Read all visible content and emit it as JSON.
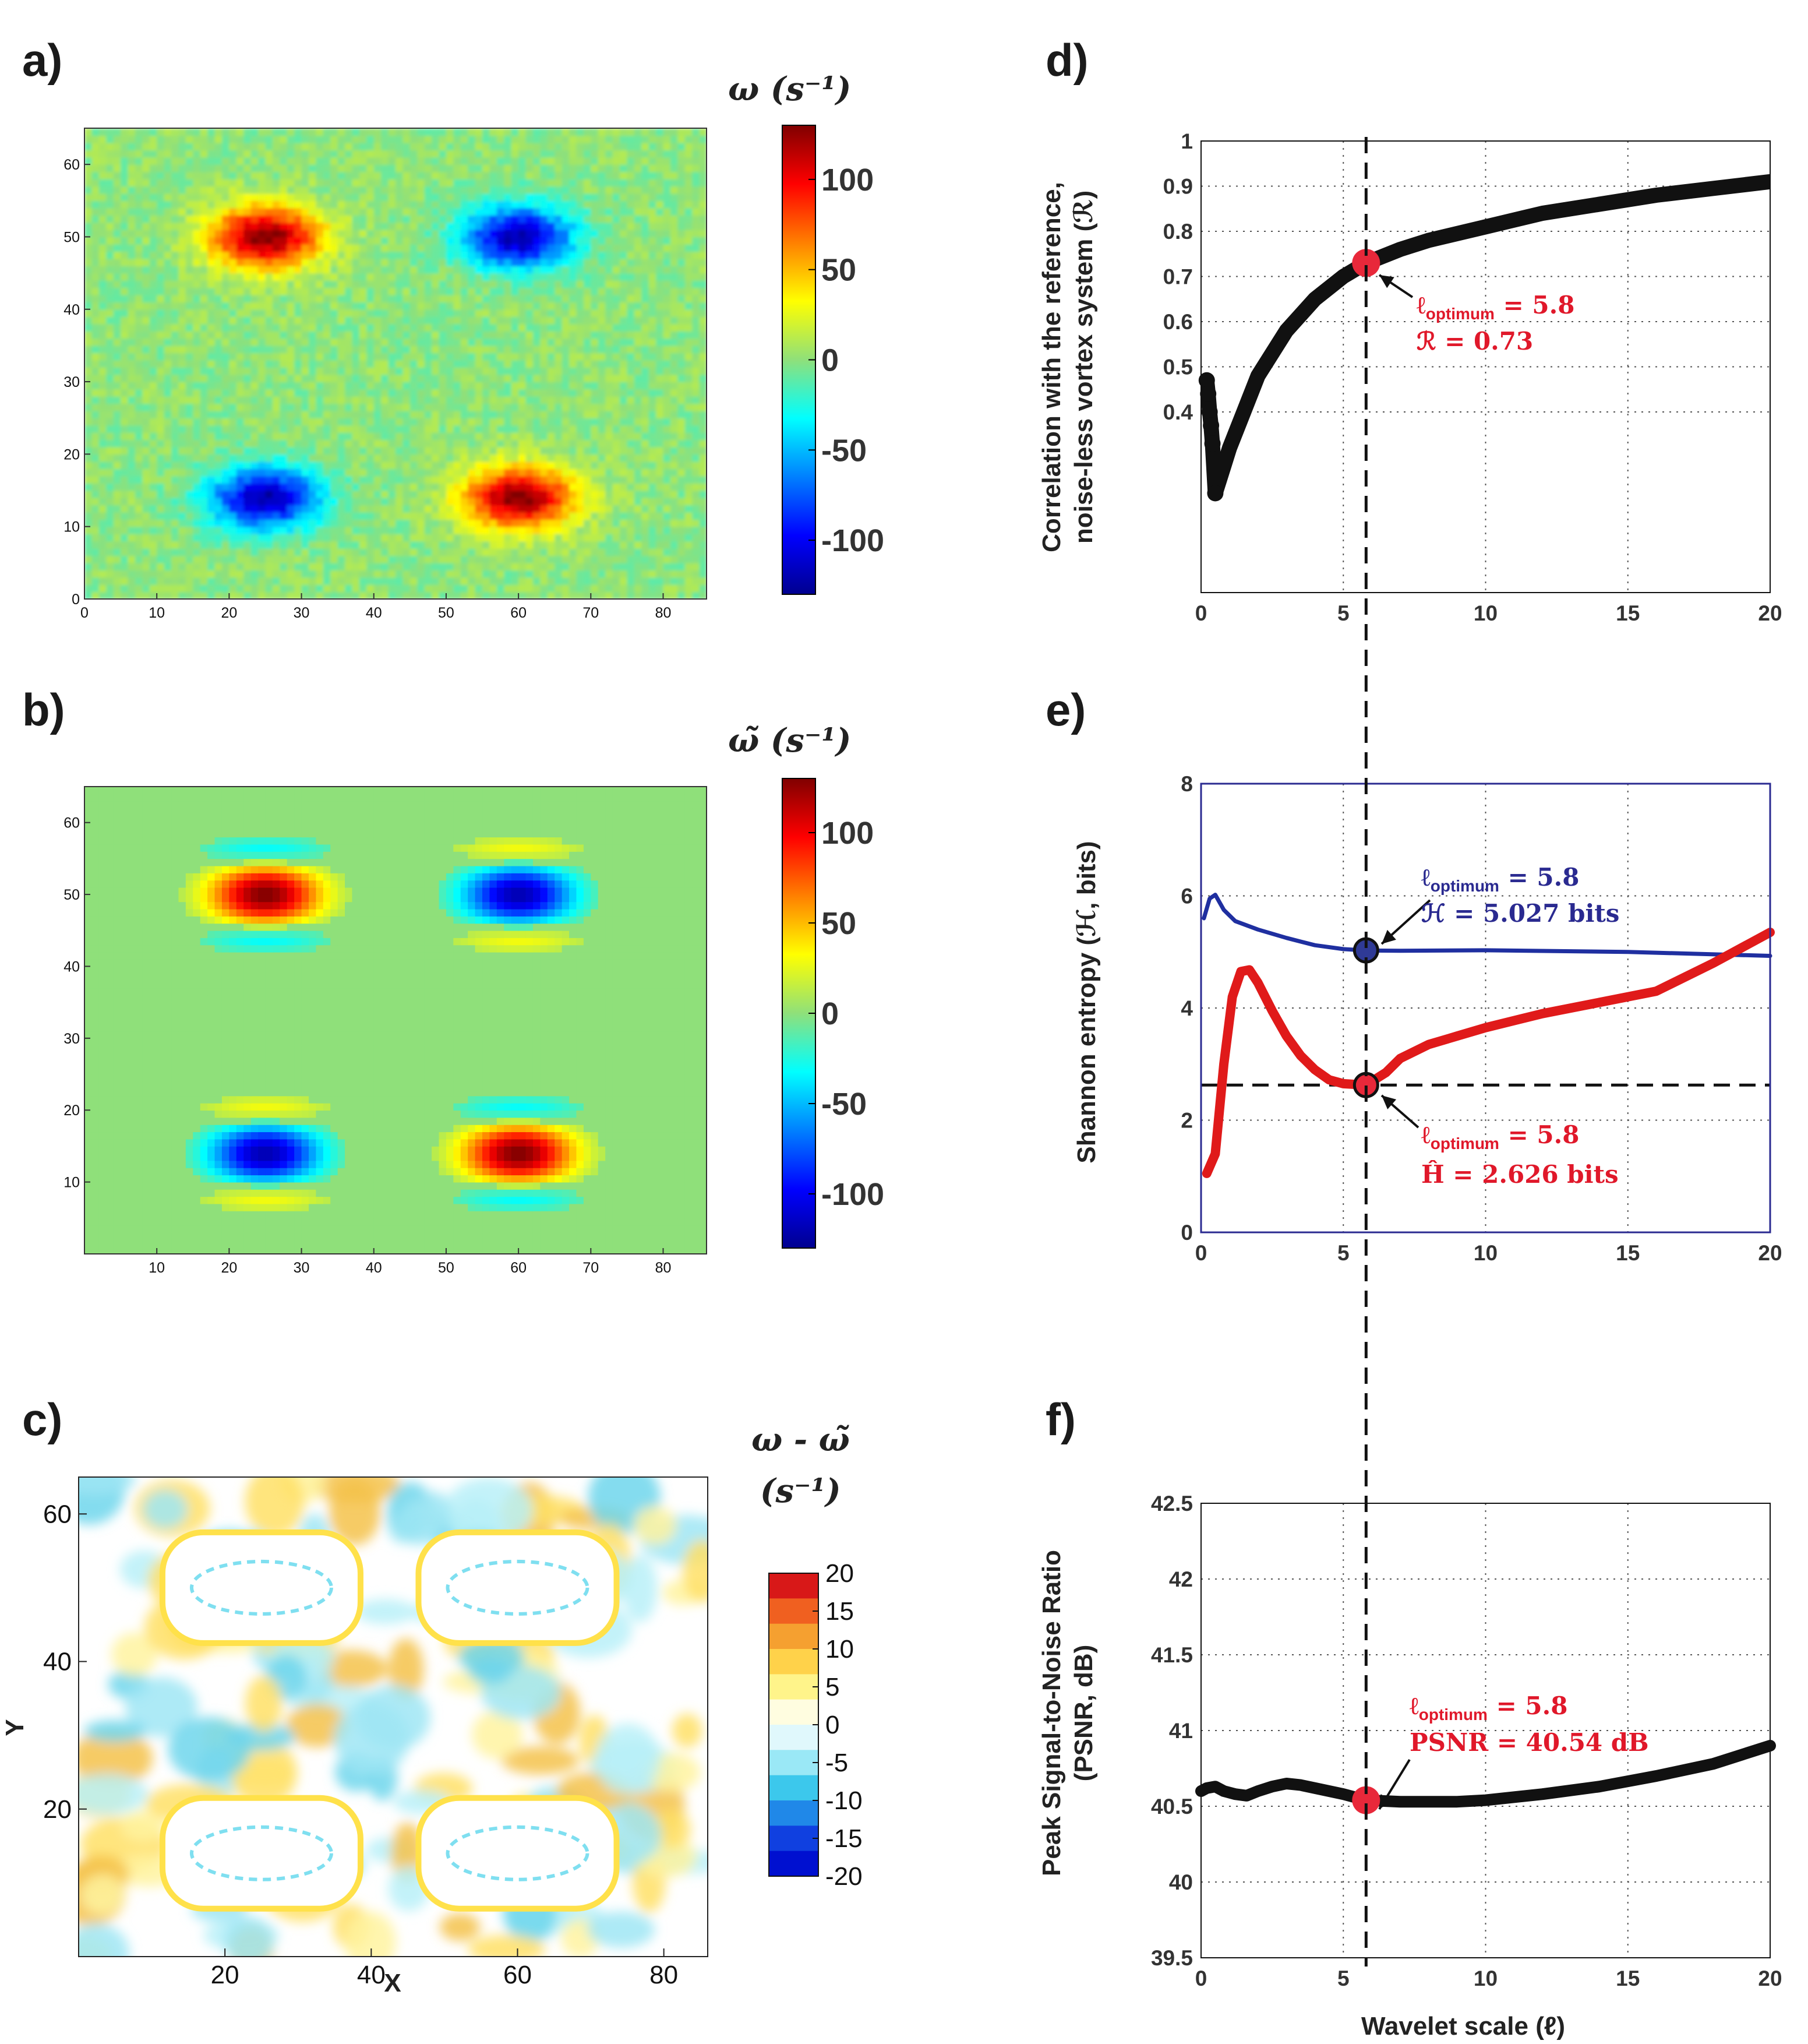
{
  "colors": {
    "dark_red": "#7a0e0e",
    "red": "#e01a1a",
    "blue": "#1f2fa0",
    "annot_red": "#e0182a",
    "annot_blue": "#2a2a90",
    "marker_red": "#e8283a",
    "marker_blue": "#2f3a96",
    "green_bg": "#8fd57a"
  },
  "chart_data": [
    {
      "panel": "a)",
      "type": "heatmap",
      "colorbar_title": "ω (s⁻¹)",
      "colorbar_ticks": [
        "100",
        "50",
        "0",
        "-50",
        "-100"
      ],
      "color_range": [
        -130,
        130
      ],
      "x_ticks": [
        "0",
        "10",
        "20",
        "30",
        "40",
        "50",
        "60",
        "70",
        "80"
      ],
      "y_ticks": [
        "0",
        "10",
        "20",
        "30",
        "40",
        "50",
        "60"
      ],
      "xlim": [
        0,
        86
      ],
      "ylim": [
        0,
        65
      ],
      "vortices": [
        {
          "x": 25,
          "y": 50,
          "strength": 130
        },
        {
          "x": 60,
          "y": 50,
          "strength": -120
        },
        {
          "x": 25,
          "y": 14,
          "strength": -120
        },
        {
          "x": 60,
          "y": 14,
          "strength": 130
        }
      ]
    },
    {
      "panel": "b)",
      "type": "heatmap",
      "colorbar_title": "ω̃ (s⁻¹)",
      "colorbar_ticks": [
        "100",
        "50",
        "0",
        "-50",
        "-100"
      ],
      "color_range": [
        -130,
        130
      ],
      "x_ticks": [
        "10",
        "20",
        "30",
        "40",
        "50",
        "60",
        "70",
        "80"
      ],
      "y_ticks": [
        "10",
        "20",
        "30",
        "40",
        "50",
        "60"
      ],
      "xlim": [
        0,
        86
      ],
      "ylim": [
        0,
        65
      ],
      "vortices": [
        {
          "x": 25,
          "y": 50,
          "strength": 130
        },
        {
          "x": 60,
          "y": 50,
          "strength": -120
        },
        {
          "x": 25,
          "y": 14,
          "strength": -120
        },
        {
          "x": 60,
          "y": 14,
          "strength": 130
        }
      ]
    },
    {
      "panel": "c)",
      "type": "heatmap",
      "colorbar_title_line1": "ω - ω̃",
      "colorbar_title_line2": "(s⁻¹)",
      "colorbar_ticks": [
        "20",
        "15",
        "10",
        "5",
        "0",
        "-5",
        "-10",
        "-15",
        "-20"
      ],
      "color_range": [
        -20,
        20
      ],
      "x_ticks": [
        "20",
        "40",
        "60",
        "80"
      ],
      "y_ticks": [
        "20",
        "40",
        "60"
      ],
      "xlabel": "X",
      "ylabel": "Y",
      "xlim": [
        0,
        86
      ],
      "ylim": [
        0,
        65
      ]
    },
    {
      "panel": "d)",
      "type": "scatter",
      "ylabel_line1": "Correlation with the reference,",
      "ylabel_line2": "noise-less vortex system (ℛ)",
      "xlim": [
        0,
        20
      ],
      "ylim": [
        0,
        1
      ],
      "x_ticks": [
        "0",
        "5",
        "10",
        "15",
        "20"
      ],
      "y_ticks": [
        "0.4",
        "0.5",
        "0.6",
        "0.7",
        "0.8",
        "0.9",
        "1"
      ],
      "x": [
        0.2,
        0.25,
        0.3,
        0.35,
        0.4,
        0.5,
        0.6,
        0.8,
        1,
        1.5,
        2,
        3,
        4,
        5,
        5.8,
        7,
        8,
        10,
        12,
        14,
        16,
        18,
        20
      ],
      "y": [
        0.47,
        0.44,
        0.4,
        0.37,
        0.33,
        0.22,
        0.24,
        0.28,
        0.32,
        0.4,
        0.48,
        0.58,
        0.65,
        0.7,
        0.73,
        0.76,
        0.78,
        0.81,
        0.84,
        0.86,
        0.88,
        0.895,
        0.91
      ],
      "optimum": {
        "x": 5.8,
        "y": 0.73
      },
      "annotation": {
        "ell": "ℓ",
        "sub": "optimum",
        "rest": " = 5.8",
        "line2": "ℛ = 0.73"
      }
    },
    {
      "panel": "e)",
      "type": "line",
      "ylabel": "Shannon entropy (ℋ, bits)",
      "xlim": [
        0,
        20
      ],
      "ylim": [
        0,
        8
      ],
      "x_ticks": [
        "0",
        "5",
        "10",
        "15",
        "20"
      ],
      "y_ticks": [
        "0",
        "2",
        "4",
        "6",
        "8"
      ],
      "series": [
        {
          "name": "ℋ",
          "color": "#1f2fa0",
          "x": [
            0.1,
            0.3,
            0.5,
            0.8,
            1.2,
            2,
            3,
            4,
            5,
            5.8,
            7,
            10,
            15,
            20
          ],
          "y": [
            5.6,
            5.95,
            6.02,
            5.75,
            5.55,
            5.4,
            5.25,
            5.12,
            5.05,
            5.027,
            5.02,
            5.03,
            5.0,
            4.93
          ]
        },
        {
          "name": "Ĥ",
          "color": "#e01a1a",
          "x": [
            0.2,
            0.5,
            0.8,
            1.1,
            1.4,
            1.7,
            2.0,
            2.5,
            3,
            3.5,
            4,
            4.5,
            5,
            5.8,
            6.5,
            7,
            8,
            9,
            10,
            12,
            14,
            16,
            18,
            20
          ],
          "y": [
            1.05,
            1.4,
            3.0,
            4.2,
            4.65,
            4.68,
            4.45,
            3.95,
            3.5,
            3.15,
            2.9,
            2.72,
            2.65,
            2.626,
            2.85,
            3.1,
            3.35,
            3.5,
            3.65,
            3.9,
            4.1,
            4.3,
            4.8,
            5.35
          ]
        }
      ],
      "hline_y": 2.626,
      "optimum_blue": {
        "x": 5.8,
        "y": 5.027
      },
      "optimum_red": {
        "x": 5.8,
        "y": 2.626
      },
      "annotation_blue": {
        "ell": "ℓ",
        "sub": "optimum",
        "rest": " = 5.8",
        "line2": "ℋ = 5.027 bits"
      },
      "annotation_red": {
        "ell": "ℓ",
        "sub": "optimum",
        "rest": " = 5.8",
        "line2": "Ĥ = 2.626 bits"
      }
    },
    {
      "panel": "f)",
      "type": "line",
      "ylabel_line1": "Peak Signal-to-Noise Ratio",
      "ylabel_line2": "(PSNR, dB)",
      "xlabel": "Wavelet scale (ℓ)",
      "xlim": [
        0,
        20
      ],
      "ylim": [
        39.5,
        42.5
      ],
      "x_ticks": [
        "0",
        "5",
        "10",
        "15",
        "20"
      ],
      "y_ticks": [
        "39.5",
        "40",
        "40.5",
        "41",
        "41.5",
        "42",
        "42.5"
      ],
      "x": [
        0,
        0.2,
        0.5,
        0.8,
        1.2,
        1.6,
        2,
        2.5,
        3,
        3.5,
        4,
        5,
        5.8,
        7,
        8,
        9,
        10,
        12,
        14,
        16,
        18,
        20
      ],
      "y": [
        40.6,
        40.62,
        40.63,
        40.6,
        40.58,
        40.57,
        40.6,
        40.63,
        40.65,
        40.64,
        40.62,
        40.58,
        40.54,
        40.53,
        40.53,
        40.53,
        40.54,
        40.58,
        40.63,
        40.7,
        40.78,
        40.9
      ],
      "optimum": {
        "x": 5.8,
        "y": 40.54
      },
      "annotation": {
        "ell": "ℓ",
        "sub": "optimum",
        "rest": " = 5.8",
        "line2": "PSNR = 40.54 dB"
      }
    }
  ]
}
